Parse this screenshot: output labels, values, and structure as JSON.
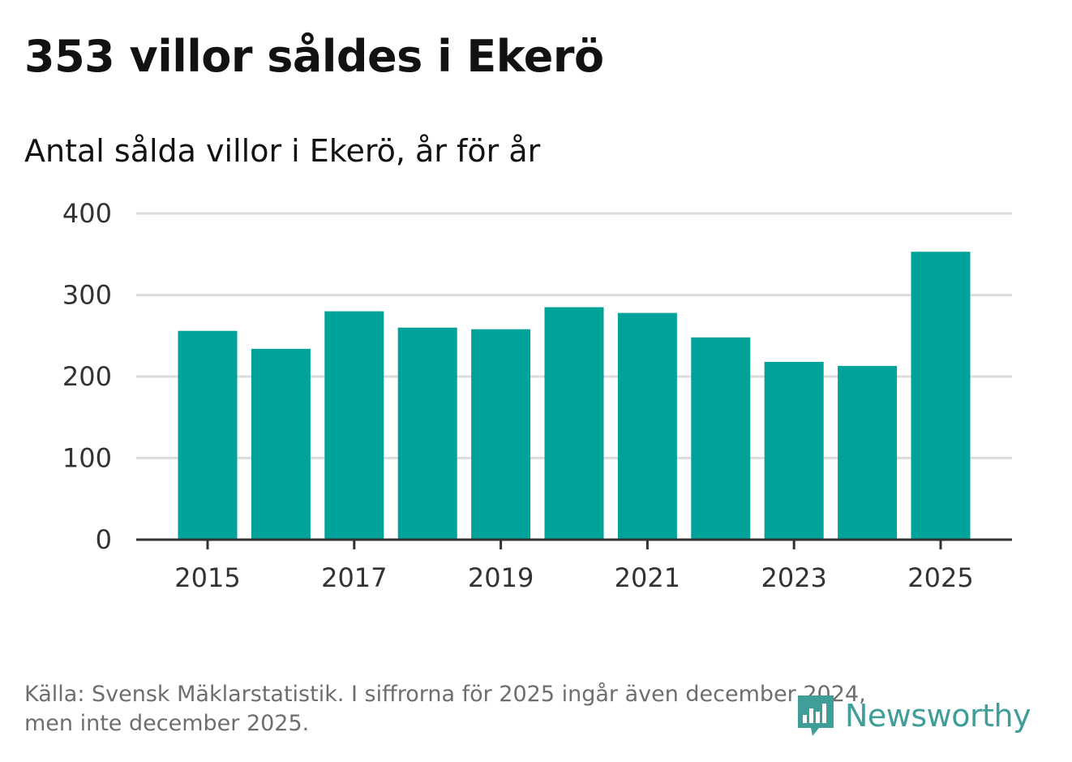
{
  "header": {
    "title": "353 villor såldes i Ekerö",
    "subtitle": "Antal sålda villor i Ekerö, år för år"
  },
  "footer": {
    "source_line1": "Källa: Svensk Mäklarstatistik. I siffrorna för 2025 ingår även december 2024,",
    "source_line2": "men inte december 2025.",
    "logo_text": "Newsworthy"
  },
  "colors": {
    "bar": "#00a39a",
    "grid": "#dddddd",
    "axis": "#333333",
    "title": "#121212",
    "tick_label": "#333333",
    "source": "#6e6e6e",
    "logo": "#3f9e98"
  },
  "chart_data": {
    "type": "bar",
    "categories": [
      "2015",
      "2016",
      "2017",
      "2018",
      "2019",
      "2020",
      "2021",
      "2022",
      "2023",
      "2024",
      "2025"
    ],
    "values": [
      256,
      234,
      280,
      260,
      258,
      285,
      278,
      248,
      218,
      213,
      353
    ],
    "x_tick_labels": [
      "2015",
      "2017",
      "2019",
      "2021",
      "2023",
      "2025"
    ],
    "y_ticks": [
      0,
      100,
      200,
      300,
      400
    ],
    "ylim": [
      0,
      400
    ],
    "xlabel": "",
    "ylabel": "",
    "grid": true,
    "legend": "none"
  }
}
